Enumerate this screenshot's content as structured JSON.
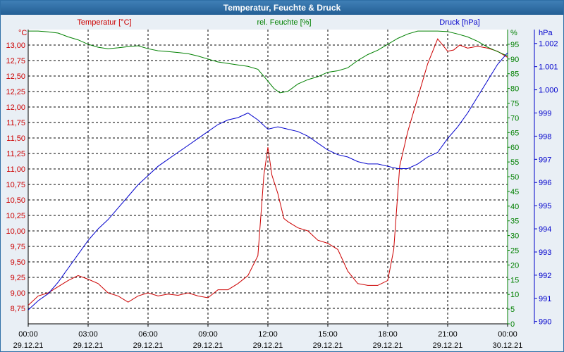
{
  "window": {
    "title": "Temperatur, Feuchte & Druck"
  },
  "colors": {
    "temperature": "#cc0000",
    "humidity": "#008000",
    "pressure": "#0000cc",
    "axis": "#000000"
  },
  "chart_data": {
    "type": "line",
    "title": "Temperatur, Feuchte & Druck",
    "grid": true,
    "x_ticks": [
      {
        "time": "00:00",
        "date": "29.12.21",
        "hour": 0
      },
      {
        "time": "03:00",
        "date": "29.12.21",
        "hour": 3
      },
      {
        "time": "06:00",
        "date": "29.12.21",
        "hour": 6
      },
      {
        "time": "09:00",
        "date": "29.12.21",
        "hour": 9
      },
      {
        "time": "12:00",
        "date": "29.12.21",
        "hour": 12
      },
      {
        "time": "15:00",
        "date": "29.12.21",
        "hour": 15
      },
      {
        "time": "18:00",
        "date": "29.12.21",
        "hour": 18
      },
      {
        "time": "21:00",
        "date": "29.12.21",
        "hour": 21
      },
      {
        "time": "00:00",
        "date": "30.12.21",
        "hour": 24
      }
    ],
    "xlim": [
      0,
      24
    ],
    "axes": {
      "temperature": {
        "label": "Temperatur [°C]",
        "unit": "°C",
        "ylim": [
          8.5,
          13.25
        ],
        "ticks": [
          "8,75",
          "9,00",
          "9,25",
          "9,50",
          "9,75",
          "10,00",
          "10,25",
          "10,50",
          "10,75",
          "11,00",
          "11,25",
          "11,50",
          "11,75",
          "12,00",
          "12,25",
          "12,50",
          "12,75",
          "13,00"
        ],
        "tick_values": [
          8.75,
          9,
          9.25,
          9.5,
          9.75,
          10,
          10.25,
          10.5,
          10.75,
          11,
          11.25,
          11.5,
          11.75,
          12,
          12.25,
          12.5,
          12.75,
          13
        ]
      },
      "humidity": {
        "label": "rel. Feuchte [%]",
        "unit": "%",
        "ylim": [
          0,
          100
        ],
        "ticks": [
          "0",
          "5",
          "10",
          "15",
          "20",
          "25",
          "30",
          "35",
          "40",
          "45",
          "50",
          "55",
          "60",
          "65",
          "70",
          "75",
          "80",
          "85",
          "90",
          "95"
        ],
        "tick_values": [
          0,
          5,
          10,
          15,
          20,
          25,
          30,
          35,
          40,
          45,
          50,
          55,
          60,
          65,
          70,
          75,
          80,
          85,
          90,
          95
        ]
      },
      "pressure": {
        "label": "Druck [hPa]",
        "unit": "hPa",
        "ylim": [
          989.9,
          1002.6
        ],
        "ticks": [
          "990",
          "991",
          "992",
          "993",
          "994",
          "995",
          "996",
          "997",
          "998",
          "999",
          "1.000",
          "1.001",
          "1.002"
        ],
        "tick_values": [
          990,
          991,
          992,
          993,
          994,
          995,
          996,
          997,
          998,
          999,
          1000,
          1001,
          1002
        ]
      }
    },
    "series": [
      {
        "name": "Temperatur [°C]",
        "axis": "temperature",
        "x": [
          0,
          0.5,
          1,
          1.5,
          2,
          2.5,
          3,
          3.5,
          4,
          4.5,
          5,
          5.5,
          6,
          6.5,
          7,
          7.5,
          8,
          8.5,
          9,
          9.5,
          10,
          10.5,
          11,
          11.5,
          11.8,
          12,
          12.2,
          12.5,
          12.8,
          13,
          13.5,
          14,
          14.5,
          15,
          15.5,
          16,
          16.5,
          17,
          17.5,
          18,
          18.3,
          18.6,
          19,
          19.5,
          20,
          20.5,
          21,
          21.3,
          21.6,
          22,
          22.5,
          23,
          23.5,
          24
        ],
        "values": [
          8.8,
          8.95,
          9.0,
          9.1,
          9.2,
          9.28,
          9.22,
          9.15,
          9.0,
          8.95,
          8.85,
          8.95,
          9.0,
          8.95,
          8.98,
          8.96,
          9.0,
          8.95,
          8.92,
          9.05,
          9.05,
          9.15,
          9.28,
          9.6,
          10.9,
          11.35,
          10.9,
          10.6,
          10.2,
          10.15,
          10.05,
          10.0,
          9.85,
          9.8,
          9.7,
          9.35,
          9.15,
          9.12,
          9.12,
          9.2,
          9.7,
          11.05,
          11.6,
          12.15,
          12.7,
          13.1,
          12.9,
          12.92,
          13.0,
          12.95,
          12.98,
          12.95,
          12.9,
          12.8
        ]
      },
      {
        "name": "rel. Feuchte [%]",
        "axis": "humidity",
        "x": [
          0,
          0.5,
          1,
          1.5,
          2,
          2.5,
          3,
          3.5,
          4,
          4.5,
          5,
          5.5,
          6,
          6.5,
          7,
          7.5,
          8,
          8.5,
          9,
          9.5,
          10,
          10.5,
          11,
          11.5,
          12,
          12.3,
          12.6,
          13,
          13.5,
          14,
          14.5,
          15,
          15.5,
          16,
          16.5,
          17,
          17.5,
          18,
          18.5,
          19,
          19.5,
          20,
          20.5,
          21,
          21.5,
          22,
          22.5,
          23,
          23.5,
          24
        ],
        "values": [
          99.5,
          99.5,
          99.2,
          98.8,
          97.5,
          96.5,
          95,
          94,
          93.5,
          93.8,
          94.2,
          94.5,
          93.5,
          92.8,
          92.5,
          92.2,
          91.8,
          91,
          90,
          89,
          88.5,
          88,
          87.5,
          86.5,
          82.5,
          80,
          78.5,
          79,
          81.5,
          83,
          84,
          85.5,
          86,
          87,
          89.5,
          91.5,
          93,
          95,
          97,
          98.5,
          99.5,
          99.5,
          99.5,
          99.3,
          98.5,
          97.5,
          96,
          94,
          92.5,
          91
        ]
      },
      {
        "name": "Druck [hPa]",
        "axis": "pressure",
        "x": [
          0,
          0.5,
          1,
          1.5,
          2,
          2.5,
          3,
          3.5,
          4,
          4.5,
          5,
          5.5,
          6,
          6.5,
          7,
          7.5,
          8,
          8.5,
          9,
          9.5,
          10,
          10.5,
          11,
          11.5,
          12,
          12.5,
          13,
          13.5,
          14,
          14.5,
          15,
          15.5,
          16,
          16.5,
          17,
          17.5,
          18,
          18.5,
          19,
          19.5,
          20,
          20.5,
          21,
          21.5,
          22,
          22.5,
          23,
          23.5,
          24
        ],
        "values": [
          990.5,
          990.9,
          991.2,
          991.7,
          992.3,
          992.9,
          993.5,
          994.0,
          994.4,
          994.9,
          995.4,
          995.9,
          996.3,
          996.7,
          997.0,
          997.3,
          997.6,
          997.9,
          998.2,
          998.5,
          998.7,
          998.8,
          999.0,
          998.7,
          998.3,
          998.4,
          998.3,
          998.2,
          998.0,
          997.7,
          997.4,
          997.2,
          997.1,
          996.9,
          996.8,
          996.8,
          996.7,
          996.6,
          996.6,
          996.8,
          997.1,
          997.3,
          997.9,
          998.4,
          999.0,
          999.7,
          1000.4,
          1001.1,
          1001.6
        ]
      }
    ]
  }
}
